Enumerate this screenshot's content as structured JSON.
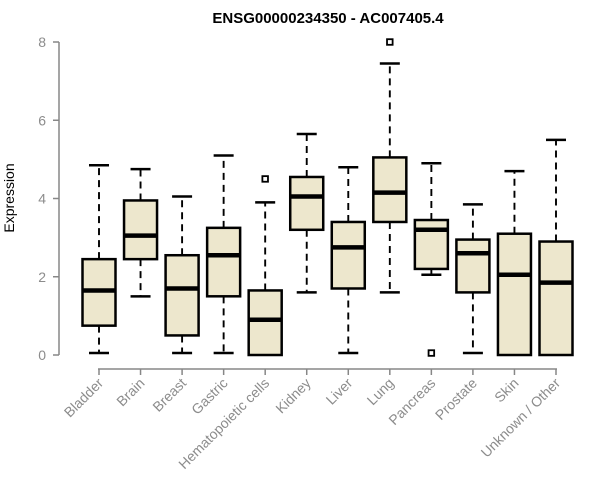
{
  "chart_data": {
    "type": "boxplot",
    "title": "ENSG00000234350 - AC007405.4",
    "xlabel": "",
    "ylabel": "Expression",
    "ylim": [
      0,
      8
    ],
    "yticks": [
      0,
      2,
      4,
      6,
      8
    ],
    "grid": false,
    "legend": "none",
    "categories": [
      "Bladder",
      "Brain",
      "Breast",
      "Gastric",
      "Hematopoietic cells",
      "Kidney",
      "Liver",
      "Lung",
      "Pancreas",
      "Prostate",
      "Skin",
      "Unknown / Other"
    ],
    "series": [
      {
        "name": "Bladder",
        "low": 0.05,
        "q1": 0.75,
        "median": 1.65,
        "q3": 2.45,
        "high": 4.85,
        "outliers": []
      },
      {
        "name": "Brain",
        "low": 1.5,
        "q1": 2.45,
        "median": 3.05,
        "q3": 3.95,
        "high": 4.75,
        "outliers": []
      },
      {
        "name": "Breast",
        "low": 0.05,
        "q1": 0.5,
        "median": 1.7,
        "q3": 2.55,
        "high": 4.05,
        "outliers": []
      },
      {
        "name": "Gastric",
        "low": 0.05,
        "q1": 1.5,
        "median": 2.55,
        "q3": 3.25,
        "high": 5.1,
        "outliers": []
      },
      {
        "name": "Hematopoietic cells",
        "low": 0.0,
        "q1": 0.0,
        "median": 0.9,
        "q3": 1.65,
        "high": 3.9,
        "outliers": [
          4.5
        ]
      },
      {
        "name": "Kidney",
        "low": 1.6,
        "q1": 3.2,
        "median": 4.05,
        "q3": 4.55,
        "high": 5.65,
        "outliers": []
      },
      {
        "name": "Liver",
        "low": 0.05,
        "q1": 1.7,
        "median": 2.75,
        "q3": 3.4,
        "high": 4.8,
        "outliers": []
      },
      {
        "name": "Lung",
        "low": 1.6,
        "q1": 3.4,
        "median": 4.15,
        "q3": 5.05,
        "high": 7.45,
        "outliers": [
          8.0
        ]
      },
      {
        "name": "Pancreas",
        "low": 2.05,
        "q1": 2.2,
        "median": 3.2,
        "q3": 3.45,
        "high": 4.9,
        "outliers": [
          0.05
        ]
      },
      {
        "name": "Prostate",
        "low": 0.05,
        "q1": 1.6,
        "median": 2.6,
        "q3": 2.95,
        "high": 3.85,
        "outliers": []
      },
      {
        "name": "Skin",
        "low": 0.0,
        "q1": 0.0,
        "median": 2.05,
        "q3": 3.1,
        "high": 4.7,
        "outliers": []
      },
      {
        "name": "Unknown / Other",
        "low": 0.0,
        "q1": 0.0,
        "median": 1.85,
        "q3": 2.9,
        "high": 5.5,
        "outliers": []
      }
    ]
  },
  "colors": {
    "background": "#FFFFFF",
    "box_fill": "#EDE7CD",
    "box_border": "#000000",
    "median": "#000000",
    "whisker": "#000000",
    "outlier": "#000000",
    "axis_line": "#878787",
    "tick_label": "#8C8C8C",
    "title": "#000000"
  }
}
